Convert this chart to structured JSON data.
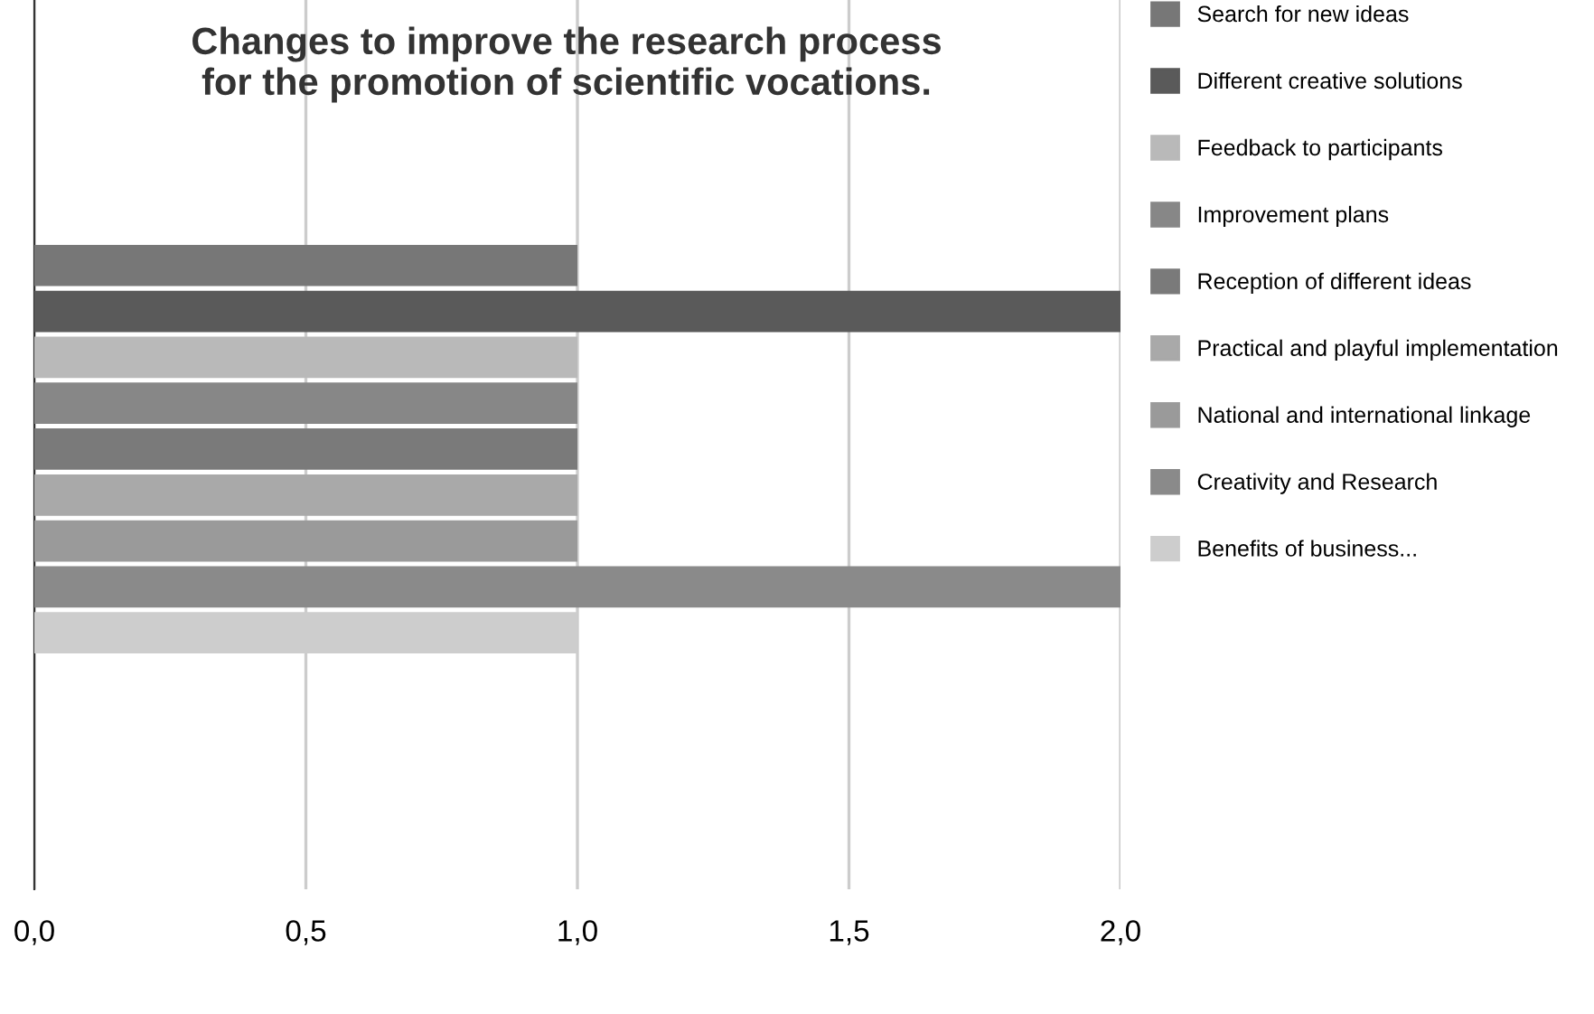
{
  "chart_data": {
    "type": "bar",
    "orientation": "horizontal",
    "title": "Changes to improve the research process\nfor the promotion of scientific vocations.",
    "categories": [
      null
    ],
    "series": [
      {
        "name": "Search for new ideas",
        "color": "#777777",
        "values": [
          1
        ]
      },
      {
        "name": "Different creative solutions",
        "color": "#5a5a5a",
        "values": [
          2
        ]
      },
      {
        "name": "Feedback to participants",
        "color": "#b9b9b9",
        "values": [
          1
        ]
      },
      {
        "name": "Improvement plans",
        "color": "#878787",
        "values": [
          1
        ]
      },
      {
        "name": "Reception of different ideas",
        "color": "#7a7a7a",
        "values": [
          1
        ]
      },
      {
        "name": "Practical and playful implementation",
        "color": "#a9a9a9",
        "values": [
          1
        ]
      },
      {
        "name": "National and international linkage",
        "color": "#9a9a9a",
        "values": [
          1
        ]
      },
      {
        "name": "Creativity and Research",
        "color": "#8a8a8a",
        "values": [
          2
        ]
      },
      {
        "name": "Benefits of business...",
        "color": "#cdcdcd",
        "values": [
          1
        ]
      }
    ],
    "xlim": [
      0,
      2
    ],
    "xticks": [
      {
        "value": 0,
        "label": "0,0"
      },
      {
        "value": 0.5,
        "label": "0,5"
      },
      {
        "value": 1,
        "label": "1,0"
      },
      {
        "value": 1.5,
        "label": "1,5"
      },
      {
        "value": 2,
        "label": "2,0"
      }
    ],
    "grid": "x",
    "legend": "right"
  }
}
